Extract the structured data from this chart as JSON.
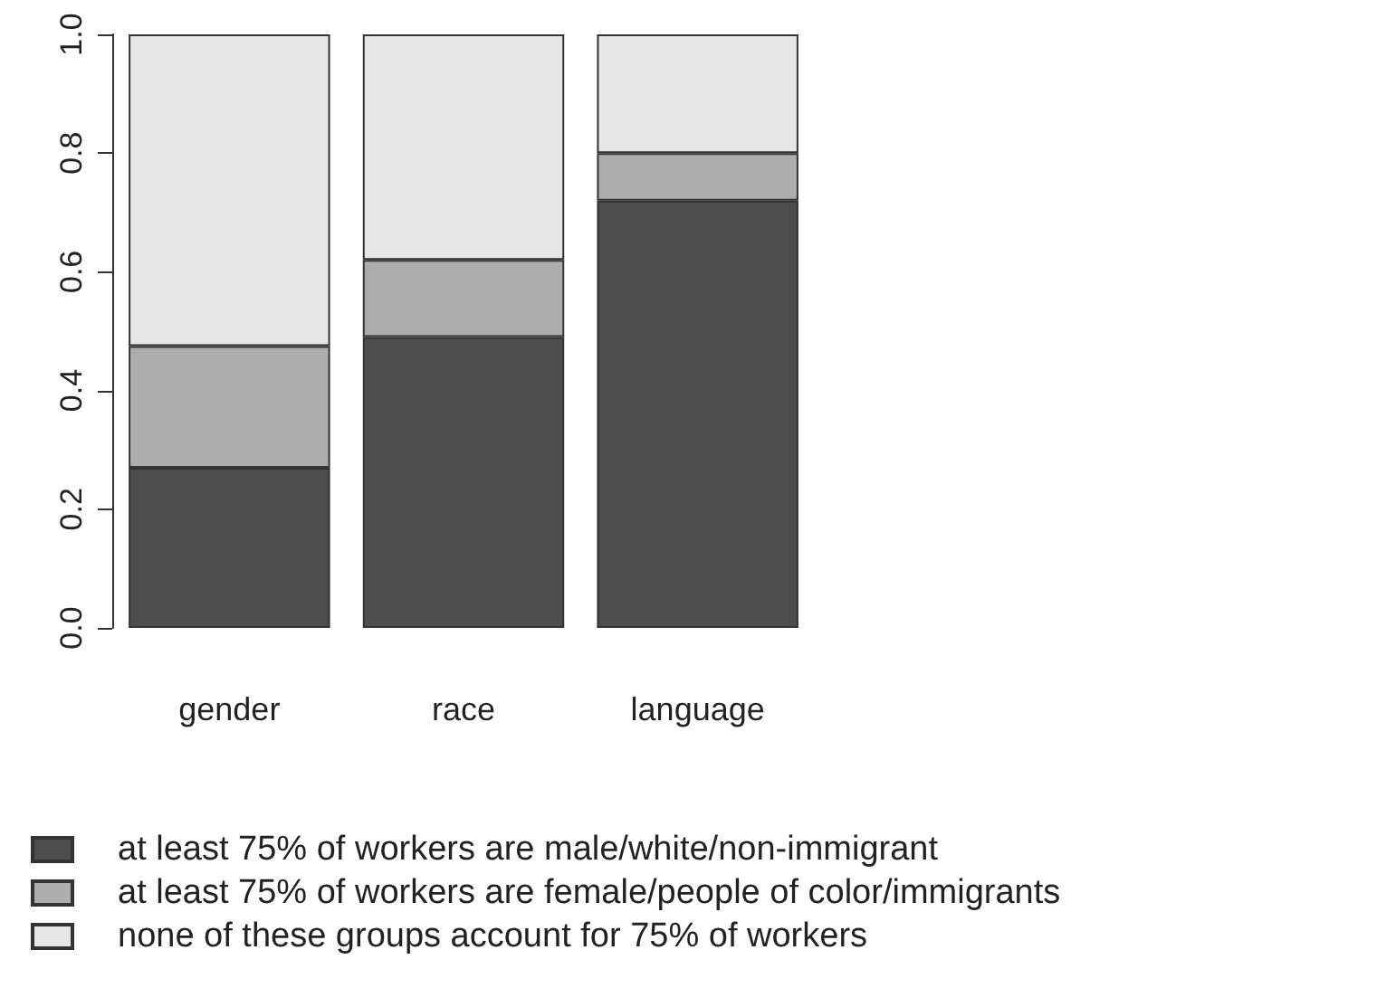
{
  "chart_data": {
    "type": "bar",
    "stacked": true,
    "categories": [
      "gender",
      "race",
      "language"
    ],
    "series": [
      {
        "name": "at least 75% of workers are male/white/non-immigrant",
        "color": "#4d4d4d",
        "values": [
          0.27,
          0.49,
          0.72
        ]
      },
      {
        "name": "at least 75% of workers are female/people of color/immigrants",
        "color": "#adadad",
        "values": [
          0.205,
          0.13,
          0.08
        ]
      },
      {
        "name": "none of these groups account for 75% of workers",
        "color": "#e6e6e6",
        "values": [
          0.525,
          0.38,
          0.2
        ]
      }
    ],
    "ylim": [
      0,
      1
    ],
    "yticks": [
      {
        "value": 0,
        "label": "0.0"
      },
      {
        "value": 0.2,
        "label": "0.2"
      },
      {
        "value": 0.4,
        "label": "0.4"
      },
      {
        "value": 0.6,
        "label": "0.6"
      },
      {
        "value": 0.8,
        "label": "0.8"
      },
      {
        "value": 1,
        "label": "1.0"
      }
    ],
    "grid": false,
    "legend": "bottom"
  }
}
